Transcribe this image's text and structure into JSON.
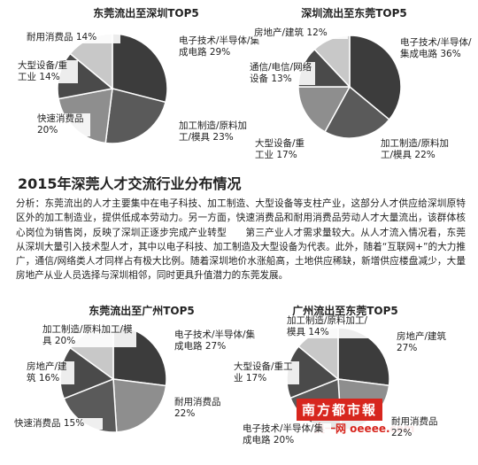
{
  "chart_data": [
    {
      "type": "pie",
      "title": "东莞流出至深圳TOP5",
      "categories": [
        "电子技术/半导体/集成电路",
        "加工制造/原料加工/模具",
        "快速消费品",
        "大型设备/重工业",
        "耐用消费品"
      ],
      "values": [
        29,
        23,
        20,
        14,
        14
      ],
      "value_labels": [
        "29%",
        "23%",
        "20%",
        "14%",
        "14%"
      ],
      "colors": [
        "#3c3c3c",
        "#5a5a5a",
        "#8e8e8e",
        "#4a4a4a",
        "#c8c8c8"
      ]
    },
    {
      "type": "pie",
      "title": "深圳流出至东莞TOP5",
      "categories": [
        "电子技术/半导体/集成电路",
        "加工制造/原料加工/模具",
        "大型设备/重工业",
        "通信/电信/网络设备",
        "房地产/建筑"
      ],
      "values": [
        36,
        22,
        17,
        13,
        12
      ],
      "value_labels": [
        "36%",
        "22%",
        "17%",
        "13%",
        "12%"
      ],
      "colors": [
        "#3c3c3c",
        "#5a5a5a",
        "#8e8e8e",
        "#4a4a4a",
        "#c8c8c8"
      ]
    },
    {
      "type": "pie",
      "title": "东莞流出至广州TOP5",
      "categories": [
        "电子技术/半导体/集成电路",
        "耐用消费品",
        "加工制造/原料加工/模具",
        "房地产/建筑",
        "快速消费品"
      ],
      "values": [
        27,
        22,
        20,
        16,
        15
      ],
      "value_labels": [
        "27%",
        "22%",
        "20%",
        "16%",
        "15%"
      ],
      "colors": [
        "#3c3c3c",
        "#8e8e8e",
        "#5a5a5a",
        "#4a4a4a",
        "#c8c8c8"
      ]
    },
    {
      "type": "pie",
      "title": "广州流出至东莞TOP5",
      "categories": [
        "房地产/建筑",
        "耐用消费品",
        "电子技术/半导体/集成电路",
        "大型设备/重工业",
        "加工制造/原料加工/模具"
      ],
      "values": [
        27,
        22,
        20,
        17,
        14
      ],
      "value_labels": [
        "27%",
        "22%",
        "20%",
        "17%",
        "14%"
      ],
      "colors": [
        "#3c3c3c",
        "#8e8e8e",
        "#5a5a5a",
        "#4a4a4a",
        "#c8c8c8"
      ]
    }
  ],
  "heading": "2015年深莞人才交流行业分布情况",
  "analysis": "分析：东莞流出的人才主要集中在电子科技、加工制造、大型设备等支柱产业，这部分人才供应给深圳原特区外的加工制造业，提供低成本劳动力。另一方面，快速消费品和耐用消费品劳动人才大量流出，该群体核心岗位为销售岗，反映了深圳正逐步完成产业转型　　第三产业人才需求量较大。从人才流入情况看，东莞从深圳大量引入技术型人才，其中以电子科技、加工制造及大型设备为代表。此外，随着“互联网+”的大力推广，通信/网络类人才同样占有极大比例。随着深圳地价水涨船高，土地供应稀缺，新增供应楼盘减少，大量房地产从业人员选择与深圳相邻，同时更具升值潜力的东莞发展。",
  "watermark": {
    "brand": "南方都市報",
    "site": "奥一网 oeeee.com"
  }
}
